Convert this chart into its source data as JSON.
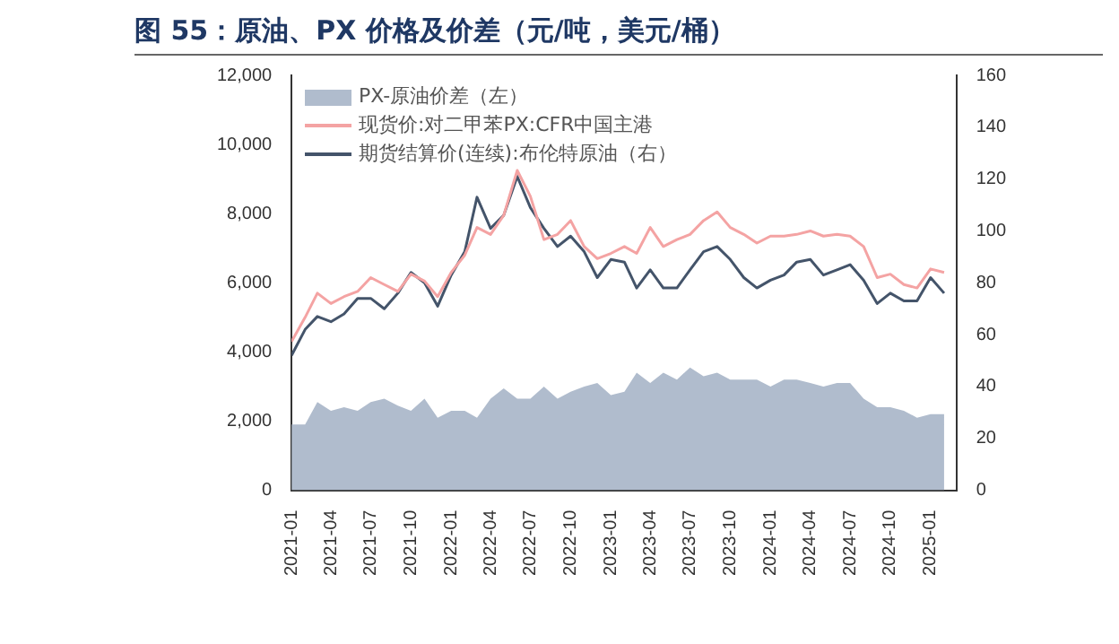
{
  "chart_data": {
    "type": "line",
    "title": "图 55：原油、PX 价格及价差（元/吨，美元/桶）",
    "x": [
      "2021-01",
      "2021-02",
      "2021-03",
      "2021-04",
      "2021-05",
      "2021-06",
      "2021-07",
      "2021-08",
      "2021-09",
      "2021-10",
      "2021-11",
      "2021-12",
      "2022-01",
      "2022-02",
      "2022-03",
      "2022-04",
      "2022-05",
      "2022-06",
      "2022-07",
      "2022-08",
      "2022-09",
      "2022-10",
      "2022-11",
      "2022-12",
      "2023-01",
      "2023-02",
      "2023-03",
      "2023-04",
      "2023-05",
      "2023-06",
      "2023-07",
      "2023-08",
      "2023-09",
      "2023-10",
      "2023-11",
      "2023-12",
      "2024-01",
      "2024-02",
      "2024-03",
      "2024-04",
      "2024-05",
      "2024-06",
      "2024-07",
      "2024-08",
      "2024-09",
      "2024-10",
      "2024-11",
      "2024-12",
      "2025-01",
      "2025-02"
    ],
    "series": [
      {
        "name": "PX-原油价差（左）",
        "type": "area",
        "color": "#b0bccd",
        "values": [
          1900,
          1900,
          2550,
          2300,
          2400,
          2300,
          2550,
          2650,
          2450,
          2300,
          2650,
          2100,
          2300,
          2300,
          2100,
          2650,
          2950,
          2650,
          2650,
          3000,
          2650,
          2850,
          3000,
          3100,
          2750,
          2850,
          3400,
          3100,
          3400,
          3200,
          3550,
          3300,
          3400,
          3200,
          3200,
          3200,
          3000,
          3200,
          3200,
          3100,
          3000,
          3100,
          3100,
          2650,
          2400,
          2400,
          2300,
          2100,
          2200,
          2200
        ]
      },
      {
        "name": "现货价:对二甲苯PX:CFR中国主港",
        "type": "line",
        "color": "#f4a3a3",
        "values": [
          4300,
          5000,
          5700,
          5400,
          5600,
          5750,
          6150,
          5950,
          5750,
          6250,
          6050,
          5600,
          6300,
          6800,
          7600,
          7400,
          7950,
          9250,
          8500,
          7250,
          7400,
          7800,
          7050,
          6700,
          6850,
          7050,
          6850,
          7600,
          7050,
          7250,
          7400,
          7800,
          8050,
          7600,
          7400,
          7150,
          7350,
          7350,
          7400,
          7500,
          7350,
          7400,
          7350,
          7050,
          6150,
          6250,
          5950,
          5850,
          6400,
          6300
        ]
      },
      {
        "name": "期货结算价(连续):布伦特原油（右）",
        "type": "line",
        "axis": "y2",
        "color": "#44546a",
        "values": [
          52,
          62,
          67,
          65,
          68,
          74,
          74,
          70,
          76,
          84,
          80,
          71,
          83,
          92,
          113,
          101,
          106,
          121,
          109,
          101,
          94,
          98,
          92,
          82,
          89,
          88,
          78,
          85,
          78,
          78,
          85,
          92,
          94,
          89,
          82,
          78,
          81,
          83,
          88,
          89,
          83,
          85,
          87,
          81,
          72,
          76,
          73,
          73,
          82,
          76
        ]
      }
    ],
    "xlim": [
      "2021-01",
      "2025-03"
    ],
    "xticks": [
      "2021-01",
      "2021-04",
      "2021-07",
      "2021-10",
      "2022-01",
      "2022-04",
      "2022-07",
      "2022-10",
      "2023-01",
      "2023-04",
      "2023-07",
      "2023-10",
      "2024-01",
      "2024-04",
      "2024-07",
      "2024-10",
      "2025-01"
    ],
    "ylim": [
      0,
      12000
    ],
    "yticks": [
      0,
      {
        "value": 2000,
        "label": "2,000"
      },
      {
        "value": 4000,
        "label": "4,000"
      },
      {
        "value": 6000,
        "label": "6,000"
      },
      {
        "value": 8000,
        "label": "8,000"
      },
      {
        "value": 10000,
        "label": "10,000"
      },
      {
        "value": 12000,
        "label": "12,000"
      }
    ],
    "y2lim": [
      0,
      160
    ],
    "y2ticks": [
      0,
      20,
      40,
      60,
      80,
      100,
      120,
      140,
      160
    ],
    "legend": "top left",
    "grid": false
  }
}
